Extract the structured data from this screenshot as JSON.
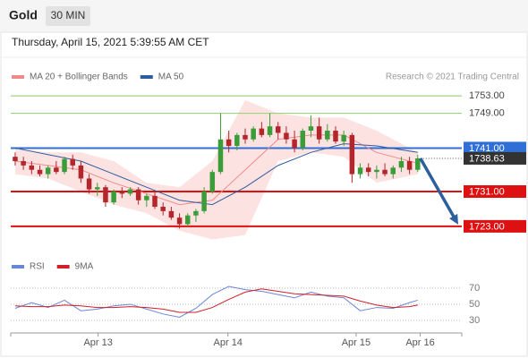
{
  "header": {
    "title": "Gold",
    "timeframe": "30 MIN",
    "timestamp": "Thursday, April 15, 2021 5:39:55 AM CET"
  },
  "chart_data": [
    {
      "type": "candlestick",
      "source": "Research © 2021 Trading Central",
      "xlim": [
        -0.54,
        54.36
      ],
      "ylim": [
        1716.8,
        1755.5
      ],
      "up_color": "#3a9d3a",
      "down_color": "#b3262b",
      "band_color": "#fde2e2",
      "open": [
        1739,
        1738,
        1737,
        1736,
        1735,
        1736.5,
        1735.5,
        1738.5,
        1737,
        1734,
        1731.5,
        1732,
        1728.5,
        1731,
        1730.5,
        1731.5,
        1729,
        1730,
        1727.5,
        1726.5,
        1725,
        1723.5,
        1725.5,
        1726.5,
        1731,
        1735.5,
        1743,
        1741.5,
        1744,
        1743,
        1745.5,
        1744,
        1746,
        1744.5,
        1743,
        1741,
        1745,
        1746,
        1743,
        1745,
        1742.5,
        1744,
        1735,
        1736.5,
        1735.5,
        1736,
        1735,
        1736.5,
        1738,
        1736
      ],
      "high": [
        1740,
        1739,
        1738,
        1737,
        1737,
        1738,
        1739,
        1739.5,
        1738,
        1735,
        1733,
        1732.5,
        1731.5,
        1732,
        1732,
        1732,
        1730.5,
        1731,
        1728.5,
        1727.5,
        1726,
        1726,
        1727,
        1732,
        1736,
        1749,
        1745,
        1744.5,
        1745.5,
        1746,
        1747,
        1749,
        1747,
        1746,
        1745,
        1745.5,
        1748.5,
        1748,
        1746.5,
        1746,
        1745,
        1744.5,
        1737.5,
        1737.5,
        1737,
        1737.5,
        1737,
        1739,
        1739,
        1739.5
      ],
      "low": [
        1737,
        1736,
        1735,
        1734.5,
        1734,
        1735,
        1735,
        1736,
        1733,
        1730.5,
        1730,
        1727.5,
        1728,
        1729.5,
        1730,
        1728,
        1727.5,
        1727,
        1725.5,
        1724.5,
        1722.5,
        1723,
        1724,
        1726,
        1730.5,
        1735,
        1740,
        1740.5,
        1742,
        1742.5,
        1743.5,
        1743.5,
        1743,
        1742,
        1740,
        1740.5,
        1743.5,
        1742,
        1742.5,
        1742,
        1741.5,
        1733,
        1734,
        1734.5,
        1734,
        1734.5,
        1734,
        1735.5,
        1735,
        1735.5
      ],
      "close": [
        1738,
        1737,
        1736,
        1735,
        1736.5,
        1735.5,
        1738.5,
        1737,
        1734,
        1731.5,
        1732,
        1728.5,
        1731,
        1730.5,
        1731.5,
        1729,
        1730,
        1727.5,
        1726.5,
        1725,
        1723.5,
        1725.5,
        1726.5,
        1731,
        1735.5,
        1743,
        1741.5,
        1744,
        1743,
        1745.5,
        1744,
        1746,
        1744.5,
        1743,
        1741,
        1745,
        1746,
        1743,
        1745,
        1742.5,
        1744,
        1735,
        1736.5,
        1735.5,
        1736,
        1735,
        1736.5,
        1738,
        1736,
        1738.63
      ],
      "series": [
        {
          "name": "MA 20 + Bollinger Bands",
          "color": "#f08a8a",
          "x": [
            0,
            4,
            8,
            12,
            16,
            20,
            24,
            28,
            32,
            36,
            40,
            44,
            49
          ],
          "values": [
            1738,
            1737,
            1736,
            1733,
            1730.5,
            1728,
            1729,
            1736,
            1743,
            1744,
            1744,
            1740,
            1737.5
          ],
          "upper": [
            1741,
            1740,
            1740,
            1738,
            1733,
            1732,
            1738,
            1752,
            1749,
            1748,
            1748,
            1745,
            1740
          ],
          "lower": [
            1735,
            1734,
            1731,
            1728,
            1726,
            1722,
            1720,
            1721,
            1738,
            1740,
            1739,
            1733,
            1735
          ]
        },
        {
          "name": "MA 50",
          "color": "#2e5d9f",
          "x": [
            0,
            4,
            8,
            12,
            16,
            20,
            24,
            28,
            32,
            36,
            40,
            44,
            49
          ],
          "values": [
            1741,
            1739.5,
            1738,
            1735,
            1732,
            1729,
            1728,
            1732,
            1737,
            1740,
            1742,
            1741.5,
            1740
          ]
        }
      ],
      "levels": [
        {
          "value": 1753,
          "label": "1753.00",
          "color": "#9fd47e",
          "boxed": false
        },
        {
          "value": 1749,
          "label": "1749.00",
          "color": "#9fd47e",
          "boxed": false
        },
        {
          "value": 1741,
          "label": "1741.00",
          "color": "#2f6fd6",
          "boxed": true
        },
        {
          "value": 1731,
          "label": "1731.00",
          "color": "#dd1111",
          "boxed": true
        },
        {
          "value": 1723,
          "label": "1723.00",
          "color": "#dd1111",
          "boxed": true
        }
      ],
      "last_price": {
        "value": 1738.63,
        "label": "1738.63",
        "color": "#333333"
      },
      "arrow_color": "#2d5e9e"
    },
    {
      "type": "line",
      "xlim": [
        -0.54,
        54.36
      ],
      "ylim": [
        19,
        82
      ],
      "yticks": [
        70,
        50,
        30
      ],
      "grid": true,
      "xticks": [
        {
          "value": 10.1,
          "label": "Apr 13"
        },
        {
          "value": 25.9,
          "label": "Apr 14"
        },
        {
          "value": 41.5,
          "label": "Apr 15"
        },
        {
          "value": 49.3,
          "label": "Apr 16"
        }
      ],
      "series": [
        {
          "name": "RSI",
          "color": "#6a86d8",
          "x": [
            0,
            2,
            4,
            6,
            8,
            10,
            12,
            14,
            16,
            18,
            20,
            22,
            24,
            26,
            28,
            30,
            32,
            34,
            36,
            38,
            40,
            42,
            44,
            46,
            48,
            49
          ],
          "values": [
            45,
            52,
            46,
            55,
            42,
            44,
            48,
            50,
            44,
            38,
            34,
            45,
            62,
            72,
            68,
            66,
            62,
            58,
            65,
            60,
            58,
            42,
            46,
            45,
            52,
            55
          ]
        },
        {
          "name": "9MA",
          "color": "#d0202a",
          "x": [
            0,
            2,
            4,
            6,
            8,
            10,
            12,
            14,
            16,
            18,
            20,
            22,
            24,
            26,
            28,
            30,
            32,
            34,
            36,
            38,
            40,
            42,
            44,
            46,
            48,
            49
          ],
          "values": [
            48,
            47,
            47,
            49,
            48,
            46,
            46,
            47,
            46,
            44,
            40,
            40,
            46,
            56,
            65,
            69,
            66,
            63,
            62,
            61,
            60,
            54,
            49,
            46,
            47,
            49
          ]
        }
      ]
    }
  ]
}
